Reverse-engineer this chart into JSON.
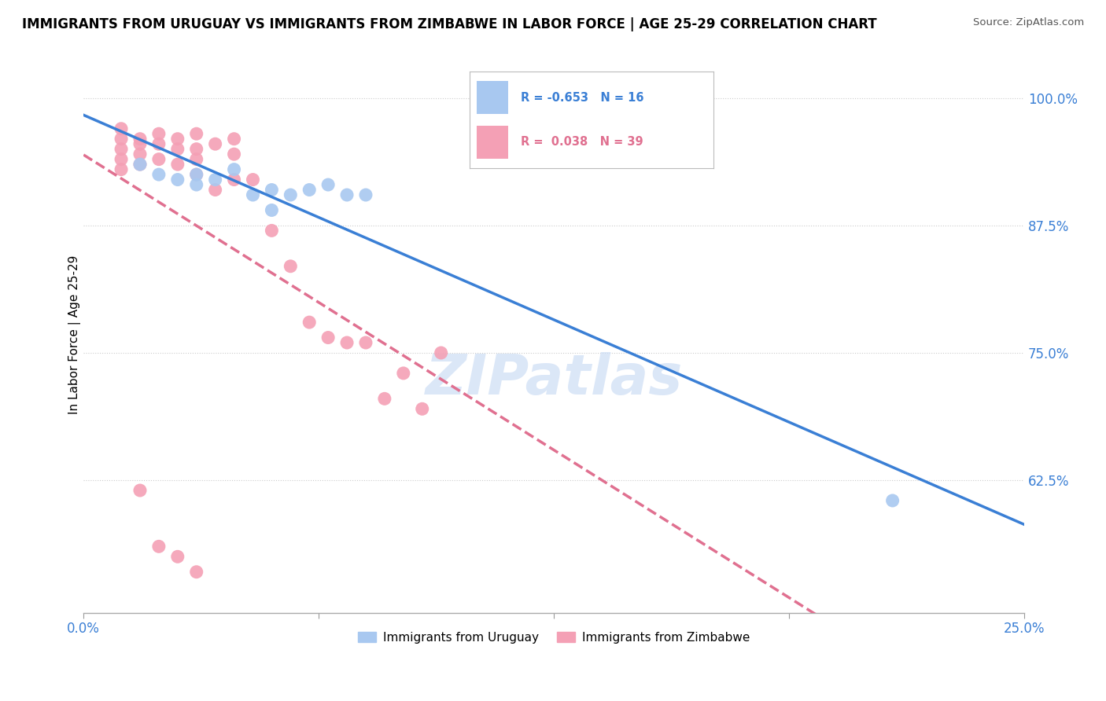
{
  "title": "IMMIGRANTS FROM URUGUAY VS IMMIGRANTS FROM ZIMBABWE IN LABOR FORCE | AGE 25-29 CORRELATION CHART",
  "source": "Source: ZipAtlas.com",
  "ylabel": "In Labor Force | Age 25-29",
  "xlim": [
    0.0,
    0.25
  ],
  "ylim": [
    0.495,
    1.04
  ],
  "xticks": [
    0.0,
    0.0625,
    0.125,
    0.1875,
    0.25
  ],
  "xticklabels": [
    "0.0%",
    "",
    "",
    "",
    "25.0%"
  ],
  "yticks": [
    0.625,
    0.75,
    0.875,
    1.0
  ],
  "yticklabels": [
    "62.5%",
    "75.0%",
    "87.5%",
    "100.0%"
  ],
  "uruguay_color": "#a8c8f0",
  "zimbabwe_color": "#f4a0b5",
  "uruguay_line_color": "#3a7fd5",
  "zimbabwe_line_color": "#e07090",
  "uruguay_R": -0.653,
  "uruguay_N": 16,
  "zimbabwe_R": 0.038,
  "zimbabwe_N": 39,
  "legend_label_uruguay": "Immigrants from Uruguay",
  "legend_label_zimbabwe": "Immigrants from Zimbabwe",
  "uruguay_points_x": [
    0.015,
    0.02,
    0.025,
    0.03,
    0.03,
    0.035,
    0.04,
    0.045,
    0.05,
    0.05,
    0.055,
    0.06,
    0.065,
    0.07,
    0.075,
    0.215
  ],
  "uruguay_points_y": [
    0.935,
    0.925,
    0.92,
    0.915,
    0.925,
    0.92,
    0.93,
    0.905,
    0.91,
    0.89,
    0.905,
    0.91,
    0.915,
    0.905,
    0.905,
    0.605
  ],
  "zimbabwe_points_x": [
    0.01,
    0.01,
    0.01,
    0.01,
    0.01,
    0.015,
    0.015,
    0.015,
    0.015,
    0.02,
    0.02,
    0.02,
    0.025,
    0.025,
    0.025,
    0.03,
    0.03,
    0.03,
    0.03,
    0.035,
    0.035,
    0.04,
    0.04,
    0.04,
    0.045,
    0.05,
    0.055,
    0.06,
    0.065,
    0.07,
    0.075,
    0.08,
    0.085,
    0.09,
    0.095,
    0.015,
    0.02,
    0.025,
    0.03
  ],
  "zimbabwe_points_y": [
    0.97,
    0.96,
    0.95,
    0.94,
    0.93,
    0.96,
    0.955,
    0.945,
    0.935,
    0.965,
    0.955,
    0.94,
    0.96,
    0.95,
    0.935,
    0.965,
    0.95,
    0.94,
    0.925,
    0.955,
    0.91,
    0.96,
    0.945,
    0.92,
    0.92,
    0.87,
    0.835,
    0.78,
    0.765,
    0.76,
    0.76,
    0.705,
    0.73,
    0.695,
    0.75,
    0.615,
    0.56,
    0.55,
    0.535
  ]
}
